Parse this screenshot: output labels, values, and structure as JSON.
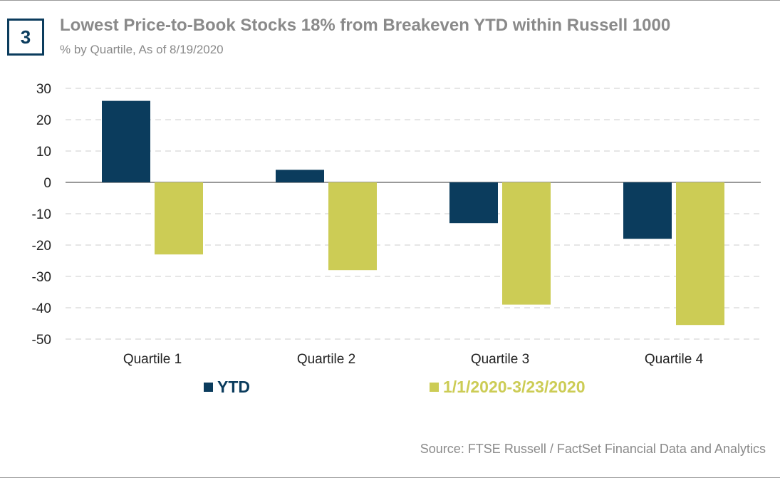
{
  "header": {
    "badge": "3",
    "title": "Lowest Price-to-Book Stocks 18% from Breakeven YTD within Russell 1000",
    "subtitle": "% by Quartile, As of 8/19/2020"
  },
  "footer": {
    "source": "Source: FTSE Russell / FactSet Financial Data and Analytics"
  },
  "colors": {
    "ytd": "#0b3c5d",
    "period": "#cccc55",
    "text_gray": "#8a8a8a",
    "grid": "#cccccc"
  },
  "chart_data": {
    "type": "bar",
    "title": "Lowest Price-to-Book Stocks 18% from Breakeven YTD within Russell 1000",
    "subtitle": "% by Quartile, As of 8/19/2020",
    "categories": [
      "Quartile 1",
      "Quartile 2",
      "Quartile 3",
      "Quartile 4"
    ],
    "series": [
      {
        "name": "YTD",
        "values": [
          26,
          4,
          -13,
          -18
        ],
        "color": "#0b3c5d"
      },
      {
        "name": "1/1/2020-3/23/2020",
        "values": [
          -23,
          -28,
          -39,
          -45.5
        ],
        "color": "#cccc55"
      }
    ],
    "ylim": [
      -50,
      30
    ],
    "yticks": [
      "30",
      "20",
      "10",
      "0",
      "-10",
      "-20",
      "-30",
      "-40",
      "-50"
    ],
    "ytick_values": [
      30,
      20,
      10,
      0,
      -10,
      -20,
      -30,
      -40,
      -50
    ],
    "xlabel": "",
    "ylabel": "",
    "grid": true,
    "legend": "bottom"
  }
}
